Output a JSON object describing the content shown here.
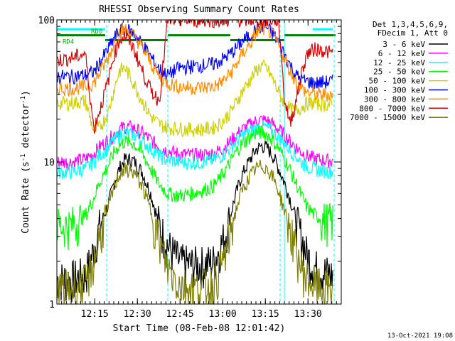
{
  "chart_data": {
    "type": "line",
    "title": "RHESSI Observing Summary Count Rates",
    "xlabel": "Start Time (08-Feb-08 12:01:42)",
    "ylabel_prefix": "Count Rate (s",
    "ylabel_sup": "-1",
    "ylabel_suffix": " detector",
    "ylabel_sup2": "-1",
    "ylabel_close": ")",
    "yscale": "log",
    "ylim": [
      1,
      100
    ],
    "xlim_minutes": [
      0,
      100
    ],
    "x_ticks": [
      {
        "label": "12:15",
        "minute": 13.3
      },
      {
        "label": "12:30",
        "minute": 28.3
      },
      {
        "label": "12:45",
        "minute": 43.3
      },
      {
        "label": "13:00",
        "minute": 58.3
      },
      {
        "label": "13:15",
        "minute": 73.3
      },
      {
        "label": "13:30",
        "minute": 88.3
      }
    ],
    "y_ticks": [
      {
        "label": "1",
        "value": 1
      },
      {
        "label": "10",
        "value": 10
      },
      {
        "label": "100",
        "value": 100
      }
    ],
    "legend_header": [
      "Det 1,3,4,5,6,9,",
      "FDecim 1, Att 0"
    ],
    "legend_placement": "right",
    "footer_date": "13-Oct-2021 19:08",
    "annotations": [
      {
        "text": "RD0",
        "color": "#00b000",
        "x": 12,
        "y": 84
      },
      {
        "text": "RD4",
        "color": "#00b000",
        "x": 2,
        "y": 71
      }
    ],
    "flags": [
      {
        "name": "attenuator-bar",
        "color": "#00ffff",
        "segments": [
          [
            0,
            17
          ],
          [
            90,
            97
          ]
        ],
        "value": 86
      },
      {
        "name": "decimation-bar",
        "color": "#008000",
        "segments": [
          [
            0,
            17
          ],
          [
            39,
            61
          ],
          [
            80,
            98
          ]
        ],
        "value": 78
      },
      {
        "name": "rd0-bar",
        "color": "#008000",
        "segments": [
          [
            17,
            39
          ],
          [
            61,
            80
          ]
        ],
        "value": 72
      }
    ],
    "vertical_markers": [
      {
        "color": "#00ffff",
        "style": "dashed",
        "minute": 17.5
      },
      {
        "color": "#00ffff",
        "style": "dashed",
        "minute": 39.0
      },
      {
        "color": "#00ffff",
        "style": "dashed",
        "minute": 78.5
      },
      {
        "color": "#00ffff",
        "style": "dashed",
        "minute": 97.5
      },
      {
        "color": "#00ffff",
        "style": "solid",
        "minute": 80.0
      }
    ],
    "series": [
      {
        "name": "3 - 6 keV",
        "color": "#000000",
        "x": [
          0,
          5,
          10,
          13,
          15,
          18,
          20,
          22,
          24,
          27,
          30,
          33,
          36,
          39,
          43,
          47,
          51,
          55,
          57,
          59,
          61,
          63,
          65,
          68,
          70,
          72,
          74,
          76,
          78,
          80,
          82,
          84,
          86,
          88,
          91,
          94,
          97
        ],
        "y": [
          1.5,
          1.5,
          1.6,
          2.4,
          3.5,
          5.0,
          7.0,
          9.0,
          10.5,
          10.2,
          8.5,
          6.0,
          3.6,
          2.6,
          2.0,
          1.9,
          1.9,
          2.0,
          2.4,
          3.0,
          4.2,
          6.0,
          8.0,
          10.5,
          12.2,
          13.0,
          12.6,
          11.0,
          9.0,
          7.2,
          5.5,
          4.0,
          3.0,
          2.2,
          1.8,
          1.7,
          1.6
        ]
      },
      {
        "name": "6 - 12 keV",
        "color": "#ff00ff",
        "x": [
          0,
          5,
          10,
          13,
          15,
          18,
          20,
          22,
          24,
          27,
          30,
          33,
          36,
          39,
          43,
          47,
          51,
          55,
          57,
          59,
          61,
          63,
          65,
          68,
          70,
          72,
          74,
          76,
          78,
          80,
          82,
          84,
          86,
          88,
          91,
          94,
          97
        ],
        "y": [
          10.0,
          10.0,
          10.5,
          11.5,
          12.8,
          14.2,
          15.6,
          17.0,
          17.8,
          17.4,
          16.0,
          14.3,
          12.8,
          12.0,
          11.4,
          11.2,
          11.2,
          11.5,
          12.0,
          12.8,
          14.0,
          15.4,
          16.8,
          18.4,
          19.4,
          19.8,
          19.5,
          18.4,
          17.0,
          15.5,
          14.0,
          12.8,
          11.8,
          11.0,
          10.5,
          10.3,
          10.2
        ]
      },
      {
        "name": "12 - 25 keV",
        "color": "#00ffff",
        "x": [
          0,
          5,
          10,
          13,
          15,
          18,
          20,
          22,
          24,
          27,
          30,
          33,
          36,
          39,
          43,
          47,
          51,
          55,
          57,
          59,
          61,
          63,
          65,
          68,
          70,
          72,
          74,
          76,
          78,
          80,
          82,
          84,
          86,
          88,
          91,
          94,
          97
        ],
        "y": [
          8.5,
          8.5,
          9.0,
          10.0,
          11.2,
          12.6,
          14.2,
          15.4,
          16.0,
          15.6,
          14.2,
          12.4,
          11.0,
          10.4,
          10.0,
          9.9,
          10.0,
          10.3,
          10.8,
          11.5,
          12.6,
          13.9,
          15.2,
          16.6,
          17.4,
          17.8,
          17.4,
          16.4,
          15.0,
          13.6,
          12.2,
          11.0,
          10.0,
          9.3,
          8.9,
          8.7,
          8.6
        ]
      },
      {
        "name": "25 - 50 keV",
        "color": "#00ff00",
        "x": [
          0,
          5,
          10,
          13,
          15,
          18,
          20,
          22,
          24,
          27,
          30,
          33,
          36,
          39,
          43,
          47,
          51,
          55,
          57,
          59,
          61,
          63,
          65,
          68,
          70,
          72,
          74,
          76,
          78,
          80,
          82,
          84,
          86,
          88,
          91,
          94,
          97
        ],
        "y": [
          3.6,
          3.6,
          4.2,
          5.6,
          7.2,
          9.4,
          11.6,
          13.2,
          14.0,
          13.6,
          11.5,
          9.0,
          7.0,
          6.0,
          5.8,
          6.0,
          6.3,
          6.8,
          7.5,
          8.6,
          10.0,
          11.8,
          13.4,
          15.0,
          16.0,
          16.2,
          15.6,
          14.2,
          12.5,
          10.6,
          8.8,
          7.2,
          5.8,
          4.8,
          4.2,
          3.9,
          3.8
        ]
      },
      {
        "name": "50 - 100 keV",
        "color": "#d0d000",
        "x": [
          0,
          5,
          10,
          13,
          15,
          18,
          20,
          22,
          24,
          27,
          30,
          33,
          36,
          39,
          43,
          47,
          51,
          55,
          57,
          59,
          61,
          63,
          65,
          68,
          70,
          72,
          74,
          76,
          78,
          80,
          82,
          84,
          86,
          88,
          91,
          94,
          97
        ],
        "y": [
          26.0,
          26.0,
          27.0,
          16.5,
          17.5,
          22.0,
          32.0,
          44.0,
          46.0,
          36.0,
          27.0,
          21.0,
          18.5,
          17.5,
          17.2,
          17.0,
          17.0,
          17.5,
          18.5,
          20.0,
          22.5,
          26.0,
          31.0,
          38.0,
          44.0,
          48.0,
          45.0,
          38.0,
          31.0,
          26.0,
          23.5,
          23.0,
          24.5,
          26.0,
          26.0,
          25.5,
          25.0
        ]
      },
      {
        "name": "100 - 300 keV",
        "color": "#0000ff",
        "x": [
          0,
          5,
          10,
          13,
          15,
          18,
          20,
          22,
          24,
          27,
          30,
          33,
          36,
          39,
          43,
          47,
          51,
          55,
          57,
          59,
          61,
          63,
          65,
          68,
          70,
          72,
          74,
          76,
          78,
          80,
          82,
          84,
          86,
          88,
          91,
          94,
          97
        ],
        "y": [
          40.0,
          40.0,
          41.0,
          43.0,
          50.0,
          62.0,
          74.0,
          84.0,
          87.0,
          80.0,
          68.0,
          55.0,
          45.0,
          41.0,
          46.0,
          47.0,
          48.0,
          49.0,
          51.0,
          54.0,
          58.0,
          63.0,
          70.0,
          78.0,
          86.0,
          90.0,
          88.0,
          80.0,
          70.0,
          58.0,
          48.0,
          41.0,
          38.0,
          37.0,
          36.0,
          36.5,
          37.0
        ]
      },
      {
        "name": "300 - 800 keV",
        "color": "#ff8c00",
        "x": [
          0,
          5,
          10,
          13,
          15,
          18,
          20,
          22,
          24,
          27,
          30,
          33,
          36,
          39,
          43,
          47,
          51,
          55,
          57,
          59,
          61,
          63,
          65,
          68,
          70,
          72,
          74,
          76,
          78,
          80,
          82,
          84,
          86,
          88,
          91,
          94,
          97
        ],
        "y": [
          33.0,
          33.0,
          34.0,
          36.0,
          42.0,
          54.0,
          68.0,
          82.0,
          86.0,
          78.0,
          64.0,
          50.0,
          40.0,
          36.0,
          34.0,
          33.5,
          33.5,
          34.0,
          35.5,
          38.0,
          42.0,
          48.0,
          57.0,
          68.0,
          80.0,
          88.0,
          86.0,
          78.0,
          66.0,
          54.0,
          44.0,
          37.0,
          33.0,
          31.0,
          30.0,
          30.0,
          30.0
        ]
      },
      {
        "name": "800 - 7000 keV",
        "color": "#dc0000",
        "x": [
          0,
          5,
          10,
          13,
          15,
          18,
          20,
          22,
          24,
          27,
          30,
          33,
          36,
          39,
          43,
          47,
          51,
          55,
          57,
          59,
          61,
          63,
          65,
          68,
          70,
          72,
          74,
          76,
          78,
          80,
          82,
          84,
          86,
          88,
          91,
          94,
          97
        ],
        "y": [
          52.0,
          54.0,
          58.0,
          17.0,
          23.0,
          37.0,
          56.0,
          72.0,
          78.0,
          63.0,
          44.0,
          32.0,
          27.0,
          100.0,
          100.0,
          100.0,
          100.0,
          100.0,
          100.0,
          100.0,
          100.0,
          100.0,
          100.0,
          100.0,
          100.0,
          100.0,
          100.0,
          100.0,
          100.0,
          28.0,
          19.0,
          26.0,
          42.0,
          58.0,
          63.0,
          61.0,
          58.0
        ]
      },
      {
        "name": "7000 - 15000 keV",
        "color": "#808000",
        "x": [
          0,
          5,
          10,
          13,
          15,
          18,
          20,
          22,
          24,
          27,
          30,
          33,
          36,
          39,
          43,
          47,
          51,
          55,
          57,
          59,
          61,
          63,
          65,
          68,
          70,
          72,
          74,
          76,
          78,
          80,
          82,
          84,
          86,
          88,
          91,
          94,
          97
        ],
        "y": [
          1.3,
          1.3,
          1.4,
          2.0,
          3.0,
          4.6,
          6.6,
          8.2,
          8.8,
          8.5,
          6.8,
          4.6,
          2.8,
          1.8,
          1.4,
          1.3,
          1.3,
          1.4,
          1.7,
          2.2,
          3.2,
          4.6,
          6.2,
          8.0,
          9.0,
          9.4,
          9.0,
          7.8,
          6.2,
          4.6,
          3.4,
          2.4,
          1.8,
          1.5,
          1.35,
          1.3,
          1.3
        ]
      }
    ]
  }
}
